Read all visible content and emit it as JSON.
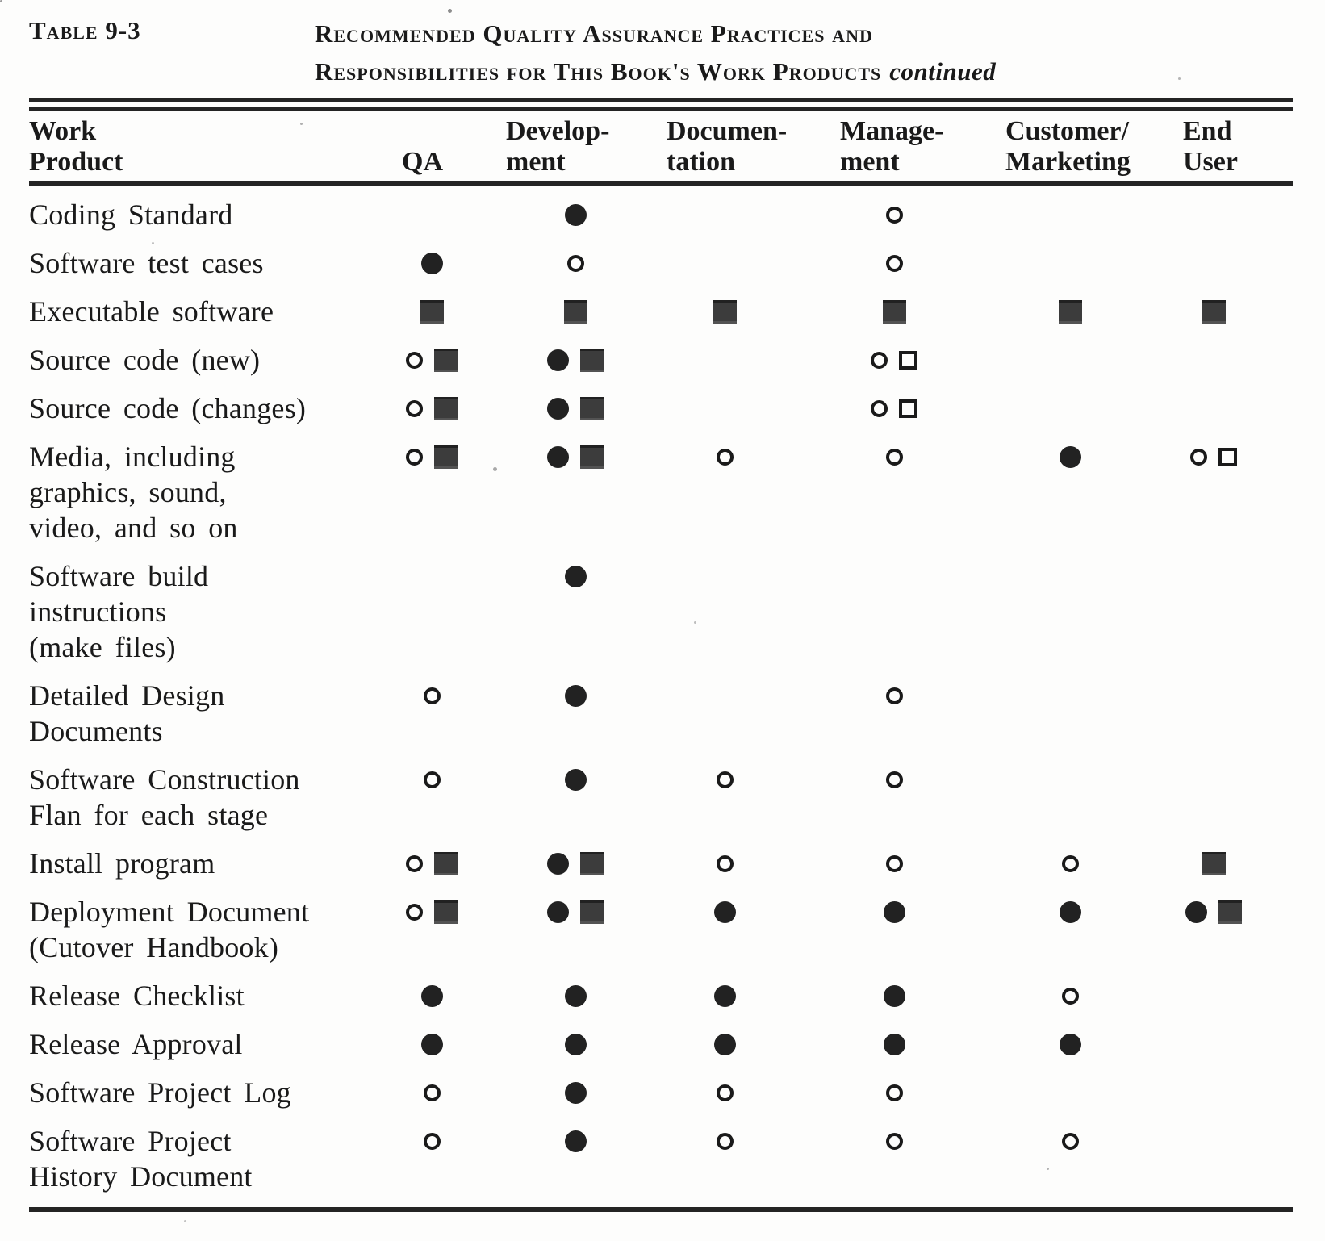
{
  "caption": {
    "label": "Table 9-3",
    "title_line1": "Recommended Quality Assurance Practices and",
    "title_line2": "Responsibilities for This Book's Work Products",
    "continued": "continued"
  },
  "table": {
    "columns": [
      {
        "key": "work_product",
        "label": "Work\nProduct"
      },
      {
        "key": "qa",
        "label": "QA"
      },
      {
        "key": "development",
        "label": "Develop-\nment"
      },
      {
        "key": "documentation",
        "label": "Documen-\ntation"
      },
      {
        "key": "management",
        "label": "Manage-\nment"
      },
      {
        "key": "customer_marketing",
        "label": "Customer/\nMarketing"
      },
      {
        "key": "end_user",
        "label": "End\nUser"
      }
    ],
    "symbols": {
      "dot": "filled-circle",
      "circle": "open-circle",
      "fsq": "filled-square",
      "osq": "open-square"
    },
    "rows": [
      {
        "name": "Coding Standard",
        "cells": [
          "",
          "dot",
          "",
          "circle",
          "",
          ""
        ]
      },
      {
        "name": "Software test cases",
        "cells": [
          "dot",
          "circle",
          "",
          "circle",
          "",
          ""
        ]
      },
      {
        "name": "Executable software",
        "cells": [
          "fsq",
          "fsq",
          "fsq",
          "fsq",
          "fsq",
          "fsq"
        ]
      },
      {
        "name": "Source code (new)",
        "cells": [
          "circle fsq",
          "dot fsq",
          "",
          "circle osq",
          "",
          ""
        ]
      },
      {
        "name": "Source code (changes)",
        "cells": [
          "circle fsq",
          "dot fsq",
          "",
          "circle osq",
          "",
          ""
        ]
      },
      {
        "name": "Media, including\ngraphics, sound,\nvideo, and so on",
        "cells": [
          "circle fsq",
          "dot fsq",
          "circle",
          "circle",
          "dot",
          "circle osq"
        ]
      },
      {
        "name": "Software build\ninstructions\n(make files)",
        "cells": [
          "",
          "dot",
          "",
          "",
          "",
          ""
        ]
      },
      {
        "name": "Detailed Design\nDocuments",
        "cells": [
          "circle",
          "dot",
          "",
          "circle",
          "",
          ""
        ]
      },
      {
        "name": "Software Construction\nFlan for each stage",
        "cells": [
          "circle",
          "dot",
          "circle",
          "circle",
          "",
          ""
        ]
      },
      {
        "name": "Install program",
        "cells": [
          "circle fsq",
          "dot fsq",
          "circle",
          "circle",
          "circle",
          "fsq"
        ]
      },
      {
        "name": "Deployment Document\n(Cutover Handbook)",
        "cells": [
          "circle fsq",
          "dot fsq",
          "dot",
          "dot",
          "dot",
          "dot fsq"
        ]
      },
      {
        "name": "Release Checklist",
        "cells": [
          "dot",
          "dot",
          "dot",
          "dot",
          "circle",
          ""
        ]
      },
      {
        "name": "Release Approval",
        "cells": [
          "dot",
          "dot",
          "dot",
          "dot",
          "dot",
          ""
        ]
      },
      {
        "name": "Software Project Log",
        "cells": [
          "circle",
          "dot",
          "circle",
          "circle",
          "",
          ""
        ]
      },
      {
        "name": "Software Project\nHistory Document",
        "cells": [
          "circle",
          "dot",
          "circle",
          "circle",
          "circle",
          ""
        ]
      }
    ]
  },
  "colors": {
    "ink": "#1a1a1a",
    "filled_square": "#3c3c3c",
    "page_background": "#fdfdfc"
  }
}
